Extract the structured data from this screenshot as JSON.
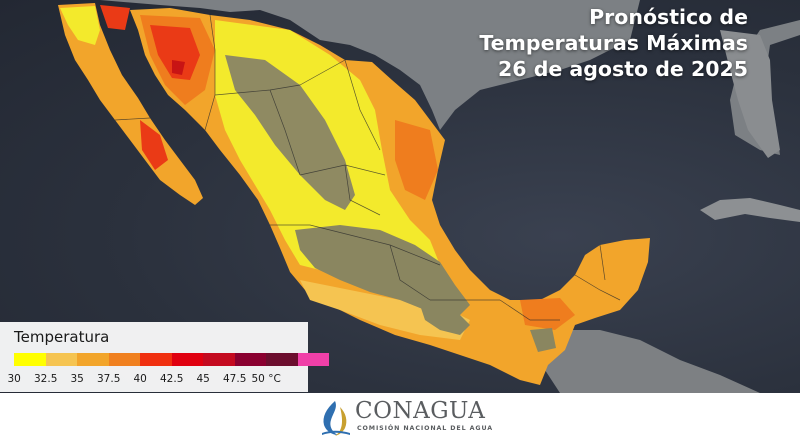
{
  "title": {
    "line1": "Pronóstico de",
    "line2": "Temperaturas Máximas",
    "line3": "26 de agosto de 2025"
  },
  "legend": {
    "title": "Temperatura",
    "colors": [
      "#ffff00",
      "#f5c451",
      "#f2a52b",
      "#f08020",
      "#f03010",
      "#e00010",
      "#c40a20",
      "#8a0030",
      "#6c0e2e",
      "#f040a8"
    ],
    "labels": [
      "30",
      "32.5",
      "35",
      "37.5",
      "40",
      "42.5",
      "45",
      "47.5",
      "50 °C"
    ]
  },
  "map": {
    "region_colors": {
      "ocean": "#2e3440",
      "land_neighbors": "#7f8285",
      "highlands": "#8f8a62",
      "range_30": "#f3ea2c",
      "range_32_5": "#f5c451",
      "range_35": "#f2a52b",
      "range_37_5": "#ef7d1e",
      "range_40": "#ea3a16",
      "range_42_5": "#d51818"
    }
  },
  "footer": {
    "logo_name": "CONAGUA",
    "logo_subtitle": "COMISIÓN NACIONAL DEL AGUA",
    "colors": {
      "primary": "#5a5d60",
      "accent": "#c8a030",
      "water": "#2f6fb0"
    }
  }
}
